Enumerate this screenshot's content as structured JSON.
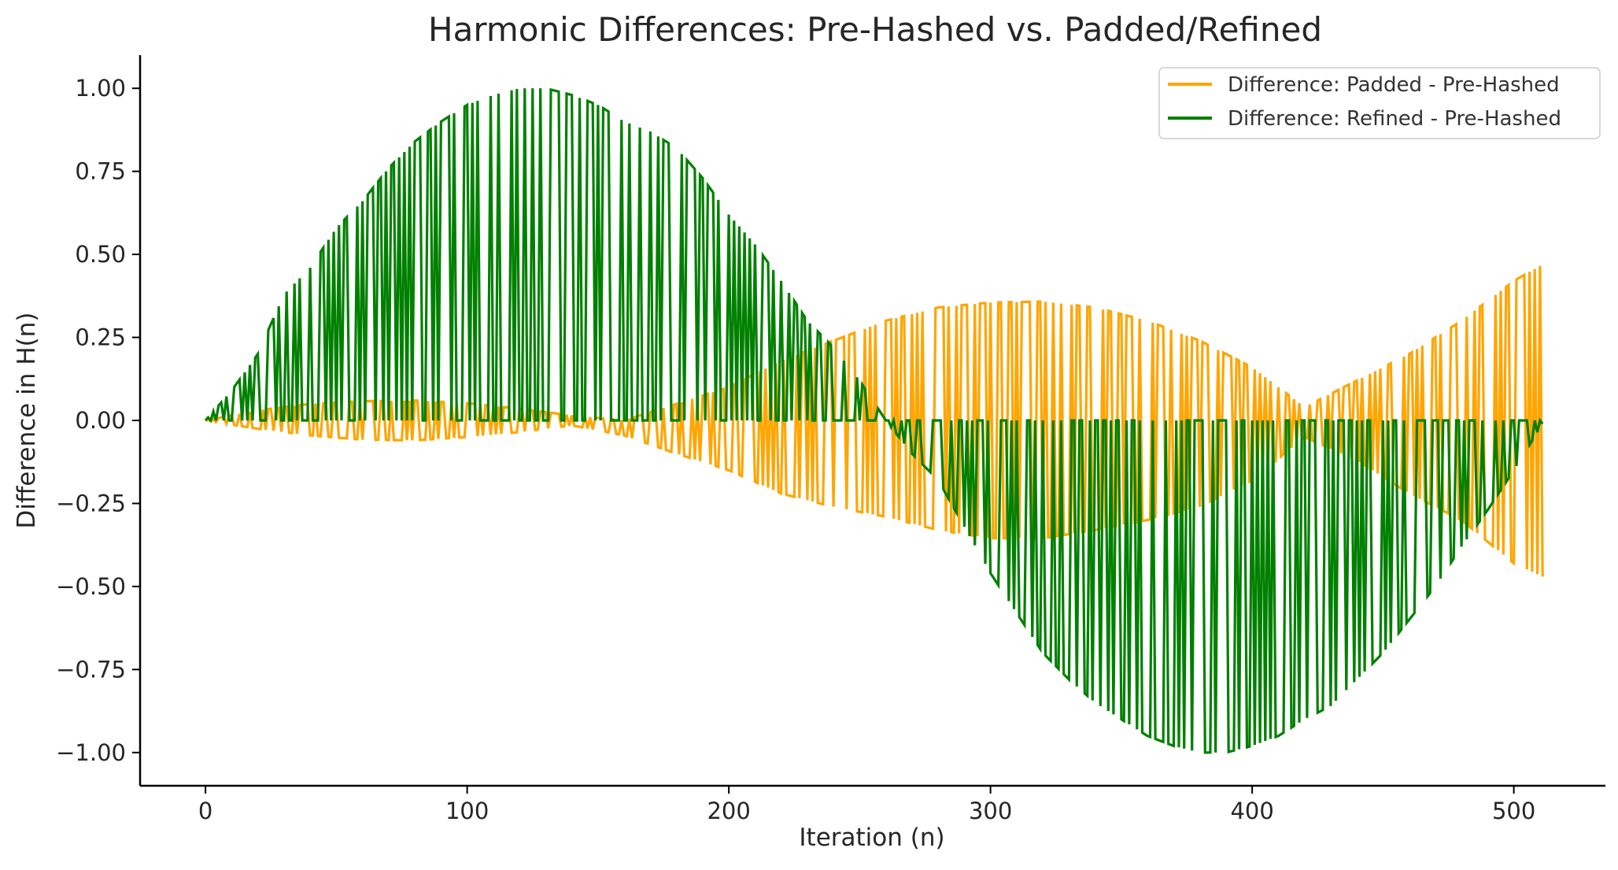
{
  "chart_data": {
    "type": "line",
    "title": "Harmonic Differences: Pre-Hashed vs. Padded/Refined",
    "xlabel": "Iteration (n)",
    "ylabel": "Difference in H(n)",
    "xlim": [
      -25,
      535
    ],
    "ylim": [
      -1.1,
      1.1
    ],
    "xticks": [
      0,
      100,
      200,
      300,
      400,
      500
    ],
    "xtick_labels": [
      "0",
      "100",
      "200",
      "300",
      "400",
      "500"
    ],
    "yticks": [
      1.0,
      0.75,
      0.5,
      0.25,
      0.0,
      -0.25,
      -0.5,
      -0.75,
      -1.0
    ],
    "ytick_labels": [
      "1.00",
      "0.75",
      "0.50",
      "0.25",
      "0.00",
      "−0.25",
      "−0.50",
      "−0.75",
      "−1.00"
    ],
    "grid": false,
    "legend_position": "top-right",
    "series": [
      {
        "name": "Difference: Padded - Pre-Hashed",
        "color": "#FFA500",
        "pattern": "toggle-between-envelopes",
        "x_start": 0,
        "x_end": 511,
        "upper_envelope": [
          [
            0,
            0.0
          ],
          [
            20,
            0.03
          ],
          [
            40,
            0.05
          ],
          [
            60,
            0.058
          ],
          [
            80,
            0.06
          ],
          [
            100,
            0.052
          ],
          [
            120,
            0.035
          ],
          [
            140,
            0.015
          ],
          [
            160,
            0.0
          ],
          [
            180,
            0.05
          ],
          [
            200,
            0.1
          ],
          [
            220,
            0.18
          ],
          [
            240,
            0.24
          ],
          [
            260,
            0.3
          ],
          [
            280,
            0.34
          ],
          [
            300,
            0.355
          ],
          [
            320,
            0.358
          ],
          [
            340,
            0.34
          ],
          [
            360,
            0.3
          ],
          [
            380,
            0.24
          ],
          [
            400,
            0.16
          ],
          [
            420,
            0.04
          ],
          [
            440,
            0.12
          ],
          [
            460,
            0.2
          ],
          [
            480,
            0.3
          ],
          [
            500,
            0.42
          ],
          [
            511,
            0.47
          ]
        ],
        "lower_envelope": [
          [
            0,
            0.0
          ],
          [
            20,
            -0.025
          ],
          [
            40,
            -0.045
          ],
          [
            60,
            -0.058
          ],
          [
            80,
            -0.06
          ],
          [
            100,
            -0.05
          ],
          [
            120,
            -0.035
          ],
          [
            140,
            -0.015
          ],
          [
            160,
            -0.045
          ],
          [
            180,
            -0.1
          ],
          [
            200,
            -0.15
          ],
          [
            220,
            -0.22
          ],
          [
            240,
            -0.26
          ],
          [
            260,
            -0.29
          ],
          [
            280,
            -0.33
          ],
          [
            300,
            -0.355
          ],
          [
            320,
            -0.355
          ],
          [
            340,
            -0.33
          ],
          [
            360,
            -0.3
          ],
          [
            380,
            -0.26
          ],
          [
            400,
            -0.18
          ],
          [
            420,
            -0.05
          ],
          [
            440,
            -0.12
          ],
          [
            460,
            -0.22
          ],
          [
            480,
            -0.3
          ],
          [
            500,
            -0.43
          ],
          [
            511,
            -0.47
          ]
        ]
      },
      {
        "name": "Difference: Refined - Pre-Hashed",
        "color": "#008000",
        "pattern": "toggle-between-envelopes",
        "x_start": 0,
        "x_end": 511,
        "upper_envelope": [
          [
            0,
            0.0
          ],
          [
            10,
            0.09
          ],
          [
            20,
            0.2
          ],
          [
            30,
            0.38
          ],
          [
            40,
            0.46
          ],
          [
            50,
            0.58
          ],
          [
            60,
            0.66
          ],
          [
            70,
            0.76
          ],
          [
            80,
            0.84
          ],
          [
            90,
            0.9
          ],
          [
            100,
            0.95
          ],
          [
            110,
            0.98
          ],
          [
            120,
            1.0
          ],
          [
            130,
            1.0
          ],
          [
            140,
            0.98
          ],
          [
            150,
            0.95
          ],
          [
            160,
            0.9
          ],
          [
            170,
            0.87
          ],
          [
            180,
            0.82
          ],
          [
            190,
            0.73
          ],
          [
            200,
            0.62
          ],
          [
            210,
            0.53
          ],
          [
            220,
            0.42
          ],
          [
            230,
            0.3
          ],
          [
            240,
            0.22
          ],
          [
            250,
            0.12
          ],
          [
            260,
            0.0
          ],
          [
            511,
            0.0
          ]
        ],
        "lower_envelope": [
          [
            0,
            0.0
          ],
          [
            260,
            0.0
          ],
          [
            270,
            -0.1
          ],
          [
            280,
            -0.18
          ],
          [
            290,
            -0.32
          ],
          [
            300,
            -0.46
          ],
          [
            310,
            -0.58
          ],
          [
            320,
            -0.7
          ],
          [
            330,
            -0.78
          ],
          [
            340,
            -0.85
          ],
          [
            350,
            -0.9
          ],
          [
            360,
            -0.95
          ],
          [
            370,
            -0.98
          ],
          [
            380,
            -1.0
          ],
          [
            390,
            -1.0
          ],
          [
            400,
            -0.98
          ],
          [
            410,
            -0.95
          ],
          [
            420,
            -0.9
          ],
          [
            430,
            -0.86
          ],
          [
            440,
            -0.78
          ],
          [
            450,
            -0.7
          ],
          [
            460,
            -0.6
          ],
          [
            470,
            -0.5
          ],
          [
            480,
            -0.38
          ],
          [
            490,
            -0.27
          ],
          [
            500,
            -0.15
          ],
          [
            511,
            -0.01
          ]
        ]
      }
    ]
  }
}
